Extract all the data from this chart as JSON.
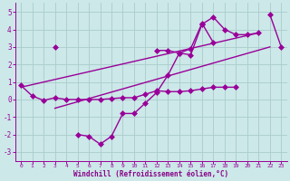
{
  "x_full": [
    0,
    1,
    2,
    3,
    4,
    5,
    6,
    7,
    8,
    9,
    10,
    11,
    12,
    13,
    14,
    15,
    16,
    17,
    18,
    19,
    20,
    21,
    22,
    23
  ],
  "series1": [
    0.8,
    0.2,
    -0.05,
    0.1,
    0.0,
    0.0,
    0.0,
    0.0,
    0.05,
    0.1,
    0.1,
    0.3,
    0.5,
    0.45,
    0.45,
    0.5,
    0.6,
    0.7,
    0.7,
    0.7,
    null,
    null,
    null,
    null
  ],
  "series2": [
    null,
    null,
    null,
    null,
    null,
    null,
    null,
    null,
    null,
    null,
    null,
    null,
    2.8,
    2.8,
    2.65,
    2.55,
    4.3,
    4.7,
    4.0,
    3.7,
    3.7,
    3.8,
    null,
    null
  ],
  "series3": [
    null,
    null,
    null,
    3,
    null,
    -2.0,
    -2.1,
    -2.55,
    -2.1,
    -0.8,
    -0.8,
    -0.2,
    0.4,
    1.4,
    2.65,
    2.9,
    4.35,
    3.25,
    null,
    null,
    null,
    null,
    null,
    null
  ],
  "series4": [
    null,
    null,
    null,
    null,
    null,
    null,
    null,
    null,
    null,
    null,
    null,
    null,
    null,
    null,
    null,
    null,
    null,
    null,
    null,
    null,
    null,
    null,
    4.85,
    3.0
  ],
  "trend1_x": [
    0,
    21
  ],
  "trend1_y": [
    0.7,
    3.8
  ],
  "trend2_x": [
    3,
    22
  ],
  "trend2_y": [
    -0.5,
    3.0
  ],
  "line_color": "#990099",
  "bg_color": "#cce8e8",
  "grid_color": "#aacccc",
  "xlabel": "Windchill (Refroidissement éolien,°C)",
  "xlabel_color": "#880088",
  "ylim": [
    -3.5,
    5.5
  ],
  "xlim": [
    -0.5,
    23.5
  ],
  "yticks": [
    -3,
    -2,
    -1,
    0,
    1,
    2,
    3,
    4,
    5
  ],
  "xticks": [
    0,
    1,
    2,
    3,
    4,
    5,
    6,
    7,
    8,
    9,
    10,
    11,
    12,
    13,
    14,
    15,
    16,
    17,
    18,
    19,
    20,
    21,
    22,
    23
  ],
  "markersize": 3,
  "linewidth": 1.0
}
